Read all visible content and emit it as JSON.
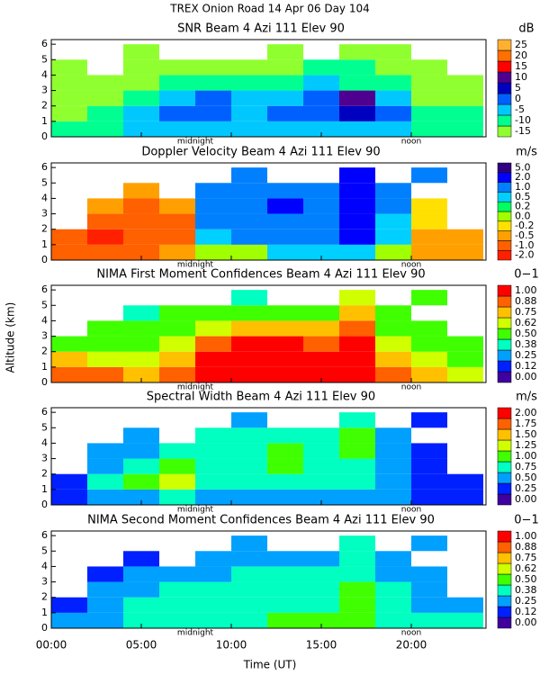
{
  "title": "TREX Onion Road  14 Apr 06 Day 104",
  "axes": {
    "xlabel": "Time (UT)",
    "ylabel": "Altitude (km)",
    "xlim": [
      0,
      24
    ],
    "xticks": [
      {
        "value": 0,
        "label": "00:00"
      },
      {
        "value": 5,
        "label": "05:00"
      },
      {
        "value": 10,
        "label": "10:00"
      },
      {
        "value": 15,
        "label": "15:00"
      },
      {
        "value": 20,
        "label": "20:00"
      }
    ],
    "ylim": [
      0,
      6.3
    ],
    "yticks": [
      0,
      1,
      2,
      3,
      4,
      5,
      6
    ],
    "annotations": [
      {
        "text": "midnight",
        "x": 8
      },
      {
        "text": "noon",
        "x": 20
      }
    ]
  },
  "chart_data": [
    {
      "type": "heatmap",
      "title": "SNR Beam 4 Azi 111 Elev 90",
      "unit": "dB",
      "xbins": [
        0,
        2,
        4,
        6,
        8,
        10,
        12,
        14,
        16,
        18,
        20,
        22,
        24
      ],
      "ybins": [
        0,
        1,
        2,
        3,
        4,
        5,
        6
      ],
      "z": [
        [
          -10,
          -10,
          -5,
          -5,
          -5,
          -5,
          -5,
          -5,
          -5,
          -5,
          -10,
          -10
        ],
        [
          -15,
          -10,
          -5,
          0,
          0,
          -5,
          0,
          0,
          5,
          0,
          -10,
          -10
        ],
        [
          -15,
          -15,
          -10,
          -5,
          0,
          -5,
          -5,
          0,
          10,
          -5,
          -15,
          -15
        ],
        [
          -15,
          -15,
          -15,
          -10,
          -10,
          -10,
          -10,
          -5,
          -10,
          -10,
          -15,
          -15
        ],
        [
          -15,
          null,
          -15,
          -15,
          -15,
          -15,
          -15,
          -10,
          -10,
          -15,
          -15,
          null
        ],
        [
          null,
          null,
          -15,
          null,
          null,
          null,
          -15,
          null,
          -15,
          -15,
          null,
          null
        ]
      ],
      "cticks": [
        -15,
        -10,
        -5,
        0,
        5,
        10,
        15,
        20,
        25
      ],
      "colors": [
        "#90ff30",
        "#00ff90",
        "#00c8ff",
        "#0060ff",
        "#0000c0",
        "#500090",
        "#ff0000",
        "#ff7000",
        "#ffb030"
      ]
    },
    {
      "type": "heatmap",
      "title": "Doppler Velocity Beam 4 Azi 111 Elev 90",
      "unit": "m/s",
      "xbins": [
        0,
        2,
        4,
        6,
        8,
        10,
        12,
        14,
        16,
        18,
        20,
        22,
        24
      ],
      "ybins": [
        0,
        1,
        2,
        3,
        4,
        5,
        6
      ],
      "z": [
        [
          -1,
          -1,
          -1,
          -0.5,
          0,
          0,
          0.5,
          0.5,
          0.5,
          0,
          -0.5,
          -0.5
        ],
        [
          -1,
          -2,
          -1,
          -1,
          0.5,
          1,
          1,
          1,
          2,
          0.5,
          -0.5,
          -0.5
        ],
        [
          null,
          -1,
          -1,
          -1,
          1,
          1,
          1,
          1,
          2,
          0.5,
          -0.2,
          null
        ],
        [
          null,
          -0.5,
          -1,
          -0.5,
          1,
          1,
          2,
          1,
          2,
          1,
          -0.2,
          null
        ],
        [
          null,
          null,
          -0.5,
          null,
          1,
          1,
          1,
          1,
          2,
          1,
          null,
          null
        ],
        [
          null,
          null,
          null,
          null,
          null,
          1,
          null,
          null,
          2,
          null,
          1,
          null
        ]
      ],
      "cticks": [
        {
          "value": -2,
          "label": "-2.0"
        },
        {
          "value": -1,
          "label": "-1.0"
        },
        {
          "value": -0.5,
          "label": "-0.5"
        },
        {
          "value": -0.2,
          "label": "-0.2"
        },
        {
          "value": 0,
          "label": "0.0"
        },
        {
          "value": 0.2,
          "label": "0.2"
        },
        {
          "value": 0.5,
          "label": "0.5"
        },
        {
          "value": 1,
          "label": "1.0"
        },
        {
          "value": 2,
          "label": "2.0"
        },
        {
          "value": 5,
          "label": "5.0"
        }
      ],
      "colors": [
        "#ff2000",
        "#ff6000",
        "#ffa000",
        "#ffe000",
        "#a0ff00",
        "#00ff60",
        "#00d0ff",
        "#0080ff",
        "#0000ff",
        "#300080"
      ]
    },
    {
      "type": "heatmap",
      "title": "NIMA First Moment Confidences Beam 4 Azi 111 Elev 90",
      "unit": "0−1",
      "xbins": [
        0,
        2,
        4,
        6,
        8,
        10,
        12,
        14,
        16,
        18,
        20,
        22,
        24
      ],
      "ybins": [
        0,
        1,
        2,
        3,
        4,
        5,
        6
      ],
      "z": [
        [
          0.88,
          0.88,
          0.75,
          0.88,
          1,
          1,
          1,
          1,
          1,
          0.88,
          0.75,
          0.62
        ],
        [
          0.75,
          0.62,
          0.62,
          0.75,
          1,
          1,
          1,
          1,
          1,
          0.75,
          0.62,
          0.5
        ],
        [
          0.5,
          0.5,
          0.5,
          0.62,
          0.88,
          1,
          1,
          0.88,
          1,
          0.62,
          0.5,
          0.5
        ],
        [
          null,
          0.5,
          0.5,
          0.5,
          0.62,
          0.75,
          0.75,
          0.75,
          0.88,
          0.5,
          0.5,
          null
        ],
        [
          null,
          null,
          0.38,
          0.5,
          0.5,
          0.5,
          0.5,
          0.5,
          0.75,
          0.5,
          null,
          null
        ],
        [
          null,
          null,
          null,
          null,
          null,
          0.38,
          null,
          null,
          0.62,
          null,
          0.5,
          null
        ]
      ],
      "cticks": [
        {
          "value": 0,
          "label": "0.00"
        },
        {
          "value": 0.12,
          "label": "0.12"
        },
        {
          "value": 0.25,
          "label": "0.25"
        },
        {
          "value": 0.38,
          "label": "0.38"
        },
        {
          "value": 0.5,
          "label": "0.50"
        },
        {
          "value": 0.62,
          "label": "0.62"
        },
        {
          "value": 0.75,
          "label": "0.75"
        },
        {
          "value": 0.88,
          "label": "0.88"
        },
        {
          "value": 1,
          "label": "1.00"
        }
      ],
      "colors": [
        "#4000a0",
        "#0020ff",
        "#00a0ff",
        "#00ffc0",
        "#40ff00",
        "#d0ff00",
        "#ffc000",
        "#ff6000",
        "#ff0000"
      ]
    },
    {
      "type": "heatmap",
      "title": "Spectral Width Beam 4 Azi 111 Elev 90",
      "unit": "m/s",
      "xbins": [
        0,
        2,
        4,
        6,
        8,
        10,
        12,
        14,
        16,
        18,
        20,
        22,
        24
      ],
      "ybins": [
        0,
        1,
        2,
        3,
        4,
        5,
        6
      ],
      "z": [
        [
          0.25,
          0.5,
          0.5,
          0.75,
          0.5,
          0.5,
          0.5,
          0.5,
          0.5,
          0.5,
          0.25,
          0.25
        ],
        [
          0.25,
          0.75,
          1,
          1.25,
          0.75,
          0.75,
          0.75,
          0.75,
          0.75,
          0.5,
          0.25,
          0.25
        ],
        [
          null,
          0.5,
          0.75,
          1,
          0.75,
          0.75,
          1,
          0.75,
          0.75,
          0.5,
          0.25,
          null
        ],
        [
          null,
          0.5,
          0.5,
          0.75,
          0.75,
          0.75,
          1,
          0.75,
          1,
          0.5,
          0.25,
          null
        ],
        [
          null,
          null,
          0.5,
          null,
          0.75,
          0.75,
          0.75,
          0.75,
          1,
          0.5,
          null,
          null
        ],
        [
          null,
          null,
          null,
          null,
          null,
          0.5,
          null,
          null,
          0.75,
          null,
          0.25,
          null
        ]
      ],
      "cticks": [
        {
          "value": 0,
          "label": "0.00"
        },
        {
          "value": 0.25,
          "label": "0.25"
        },
        {
          "value": 0.5,
          "label": "0.50"
        },
        {
          "value": 0.75,
          "label": "0.75"
        },
        {
          "value": 1,
          "label": "1.00"
        },
        {
          "value": 1.25,
          "label": "1.25"
        },
        {
          "value": 1.5,
          "label": "1.50"
        },
        {
          "value": 1.75,
          "label": "1.75"
        },
        {
          "value": 2,
          "label": "2.00"
        }
      ],
      "colors": [
        "#4000a0",
        "#0020ff",
        "#00a0ff",
        "#00ffc0",
        "#40ff00",
        "#d0ff00",
        "#ffc000",
        "#ff6000",
        "#ff0000"
      ]
    },
    {
      "type": "heatmap",
      "title": "NIMA Second Moment Confidences Beam 4 Azi 111 Elev 90",
      "unit": "0−1",
      "xbins": [
        0,
        2,
        4,
        6,
        8,
        10,
        12,
        14,
        16,
        18,
        20,
        22,
        24
      ],
      "ybins": [
        0,
        1,
        2,
        3,
        4,
        5,
        6
      ],
      "z": [
        [
          0.25,
          0.25,
          0.38,
          0.38,
          0.38,
          0.38,
          0.5,
          0.5,
          0.5,
          0.38,
          0.38,
          0.38
        ],
        [
          0.12,
          0.25,
          0.38,
          0.38,
          0.38,
          0.38,
          0.38,
          0.38,
          0.5,
          0.38,
          0.25,
          0.25
        ],
        [
          null,
          0.25,
          0.25,
          0.38,
          0.38,
          0.38,
          0.38,
          0.38,
          0.5,
          0.38,
          0.25,
          null
        ],
        [
          null,
          0.12,
          0.25,
          0.25,
          0.25,
          0.38,
          0.38,
          0.38,
          0.38,
          0.25,
          0.25,
          null
        ],
        [
          null,
          null,
          0.12,
          null,
          0.25,
          0.25,
          0.25,
          0.25,
          0.38,
          0.25,
          null,
          null
        ],
        [
          null,
          null,
          null,
          null,
          null,
          0.25,
          null,
          null,
          0.38,
          null,
          0.25,
          null
        ]
      ],
      "cticks": [
        {
          "value": 0,
          "label": "0.00"
        },
        {
          "value": 0.12,
          "label": "0.12"
        },
        {
          "value": 0.25,
          "label": "0.25"
        },
        {
          "value": 0.38,
          "label": "0.38"
        },
        {
          "value": 0.5,
          "label": "0.50"
        },
        {
          "value": 0.62,
          "label": "0.62"
        },
        {
          "value": 0.75,
          "label": "0.75"
        },
        {
          "value": 0.88,
          "label": "0.88"
        },
        {
          "value": 1,
          "label": "1.00"
        }
      ],
      "colors": [
        "#4000a0",
        "#0020ff",
        "#00a0ff",
        "#00ffc0",
        "#40ff00",
        "#d0ff00",
        "#ffc000",
        "#ff6000",
        "#ff0000"
      ]
    }
  ]
}
